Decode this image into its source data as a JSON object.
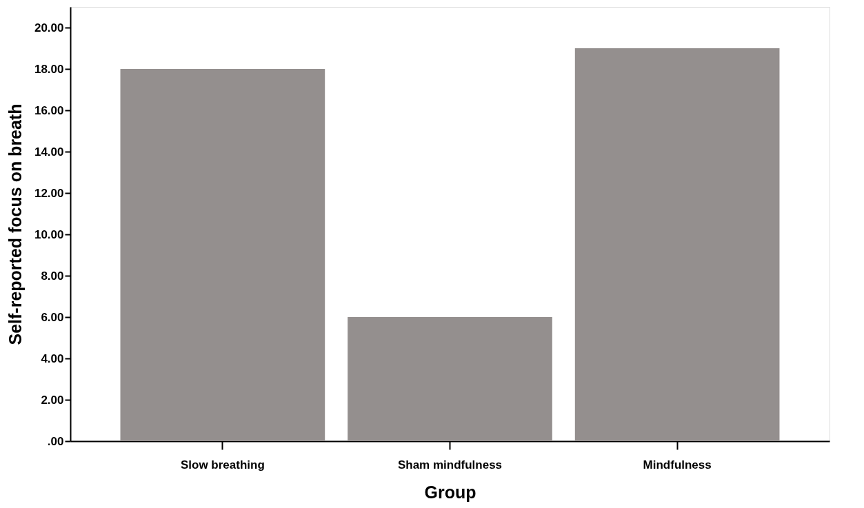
{
  "chart_data": {
    "type": "bar",
    "xlabel": "Group",
    "ylabel": "Self-reported focus on breath",
    "categories": [
      "Slow breathing",
      "Sham mindfulness",
      "Mindfulness"
    ],
    "values": [
      18,
      6,
      19
    ],
    "color": "#948f8e",
    "ylim": [
      0,
      21
    ],
    "yticks": [
      {
        "value": 0,
        "label": ".00"
      },
      {
        "value": 2,
        "label": "2.00"
      },
      {
        "value": 4,
        "label": "4.00"
      },
      {
        "value": 6,
        "label": "6.00"
      },
      {
        "value": 8,
        "label": "8.00"
      },
      {
        "value": 10,
        "label": "10.00"
      },
      {
        "value": 12,
        "label": "12.00"
      },
      {
        "value": 14,
        "label": "14.00"
      },
      {
        "value": 16,
        "label": "16.00"
      },
      {
        "value": 18,
        "label": "18.00"
      },
      {
        "value": 20,
        "label": "20.00"
      }
    ]
  }
}
